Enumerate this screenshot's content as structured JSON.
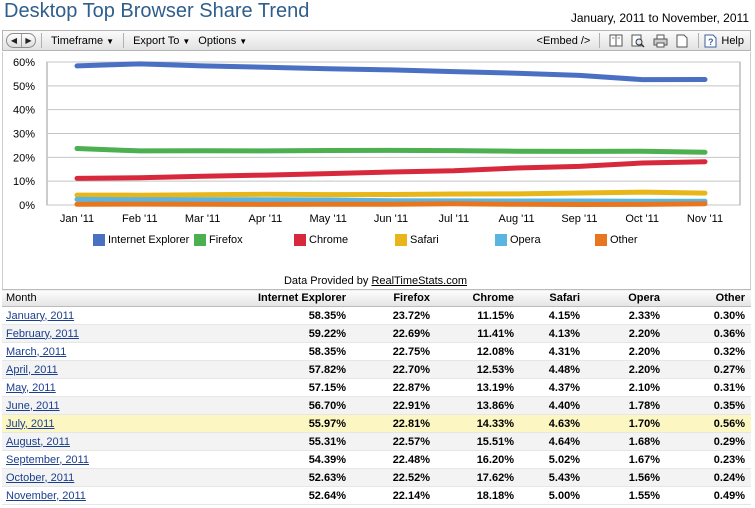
{
  "header": {
    "title": "Desktop Top Browser Share Trend",
    "date_range": "January, 2011 to November, 2011"
  },
  "toolbar": {
    "timeframe_label": "Timeframe",
    "export_label": "Export To",
    "options_label": "Options",
    "embed_label": "<Embed />",
    "help_label": "Help"
  },
  "provided": {
    "prefix": "Data Provided by",
    "link": "RealTimeStats.com"
  },
  "colors": {
    "Internet Explorer": "#4a70c4",
    "Firefox": "#4caf50",
    "Chrome": "#d8283c",
    "Safari": "#e8b618",
    "Opera": "#5ab4e0",
    "Other": "#e8761e"
  },
  "chart_data": {
    "type": "line",
    "x": [
      "Jan '11",
      "Feb '11",
      "Mar '11",
      "Apr '11",
      "May '11",
      "Jun '11",
      "Jul '11",
      "Aug '11",
      "Sep '11",
      "Oct '11",
      "Nov '11"
    ],
    "ylim": [
      0,
      60
    ],
    "yticks": [
      "0%",
      "10%",
      "20%",
      "30%",
      "40%",
      "50%",
      "60%"
    ],
    "grid": true,
    "legend_position": "bottom",
    "series": [
      {
        "name": "Internet Explorer",
        "values": [
          58.35,
          59.22,
          58.35,
          57.82,
          57.15,
          56.7,
          55.97,
          55.31,
          54.39,
          52.63,
          52.64
        ]
      },
      {
        "name": "Firefox",
        "values": [
          23.72,
          22.69,
          22.75,
          22.7,
          22.87,
          22.91,
          22.81,
          22.57,
          22.48,
          22.52,
          22.14
        ]
      },
      {
        "name": "Chrome",
        "values": [
          11.15,
          11.41,
          12.08,
          12.53,
          13.19,
          13.86,
          14.33,
          15.51,
          16.2,
          17.62,
          18.18
        ]
      },
      {
        "name": "Safari",
        "values": [
          4.15,
          4.13,
          4.31,
          4.48,
          4.37,
          4.4,
          4.63,
          4.64,
          5.02,
          5.43,
          5.0
        ]
      },
      {
        "name": "Opera",
        "values": [
          2.33,
          2.2,
          2.2,
          2.2,
          2.1,
          1.78,
          1.7,
          1.68,
          1.67,
          1.56,
          1.55
        ]
      },
      {
        "name": "Other",
        "values": [
          0.3,
          0.36,
          0.32,
          0.27,
          0.31,
          0.35,
          0.56,
          0.29,
          0.23,
          0.24,
          0.49
        ]
      }
    ]
  },
  "table": {
    "headers": [
      "Month",
      "Internet Explorer",
      "Firefox",
      "Chrome",
      "Safari",
      "Opera",
      "Other"
    ],
    "rows": [
      [
        "January, 2011",
        "58.35%",
        "23.72%",
        "11.15%",
        "4.15%",
        "2.33%",
        "0.30%"
      ],
      [
        "February, 2011",
        "59.22%",
        "22.69%",
        "11.41%",
        "4.13%",
        "2.20%",
        "0.36%"
      ],
      [
        "March, 2011",
        "58.35%",
        "22.75%",
        "12.08%",
        "4.31%",
        "2.20%",
        "0.32%"
      ],
      [
        "April, 2011",
        "57.82%",
        "22.70%",
        "12.53%",
        "4.48%",
        "2.20%",
        "0.27%"
      ],
      [
        "May, 2011",
        "57.15%",
        "22.87%",
        "13.19%",
        "4.37%",
        "2.10%",
        "0.31%"
      ],
      [
        "June, 2011",
        "56.70%",
        "22.91%",
        "13.86%",
        "4.40%",
        "1.78%",
        "0.35%"
      ],
      [
        "July, 2011",
        "55.97%",
        "22.81%",
        "14.33%",
        "4.63%",
        "1.70%",
        "0.56%"
      ],
      [
        "August, 2011",
        "55.31%",
        "22.57%",
        "15.51%",
        "4.64%",
        "1.68%",
        "0.29%"
      ],
      [
        "September, 2011",
        "54.39%",
        "22.48%",
        "16.20%",
        "5.02%",
        "1.67%",
        "0.23%"
      ],
      [
        "October, 2011",
        "52.63%",
        "22.52%",
        "17.62%",
        "5.43%",
        "1.56%",
        "0.24%"
      ],
      [
        "November, 2011",
        "52.64%",
        "22.14%",
        "18.18%",
        "5.00%",
        "1.55%",
        "0.49%"
      ]
    ],
    "highlighted_row": 6
  }
}
